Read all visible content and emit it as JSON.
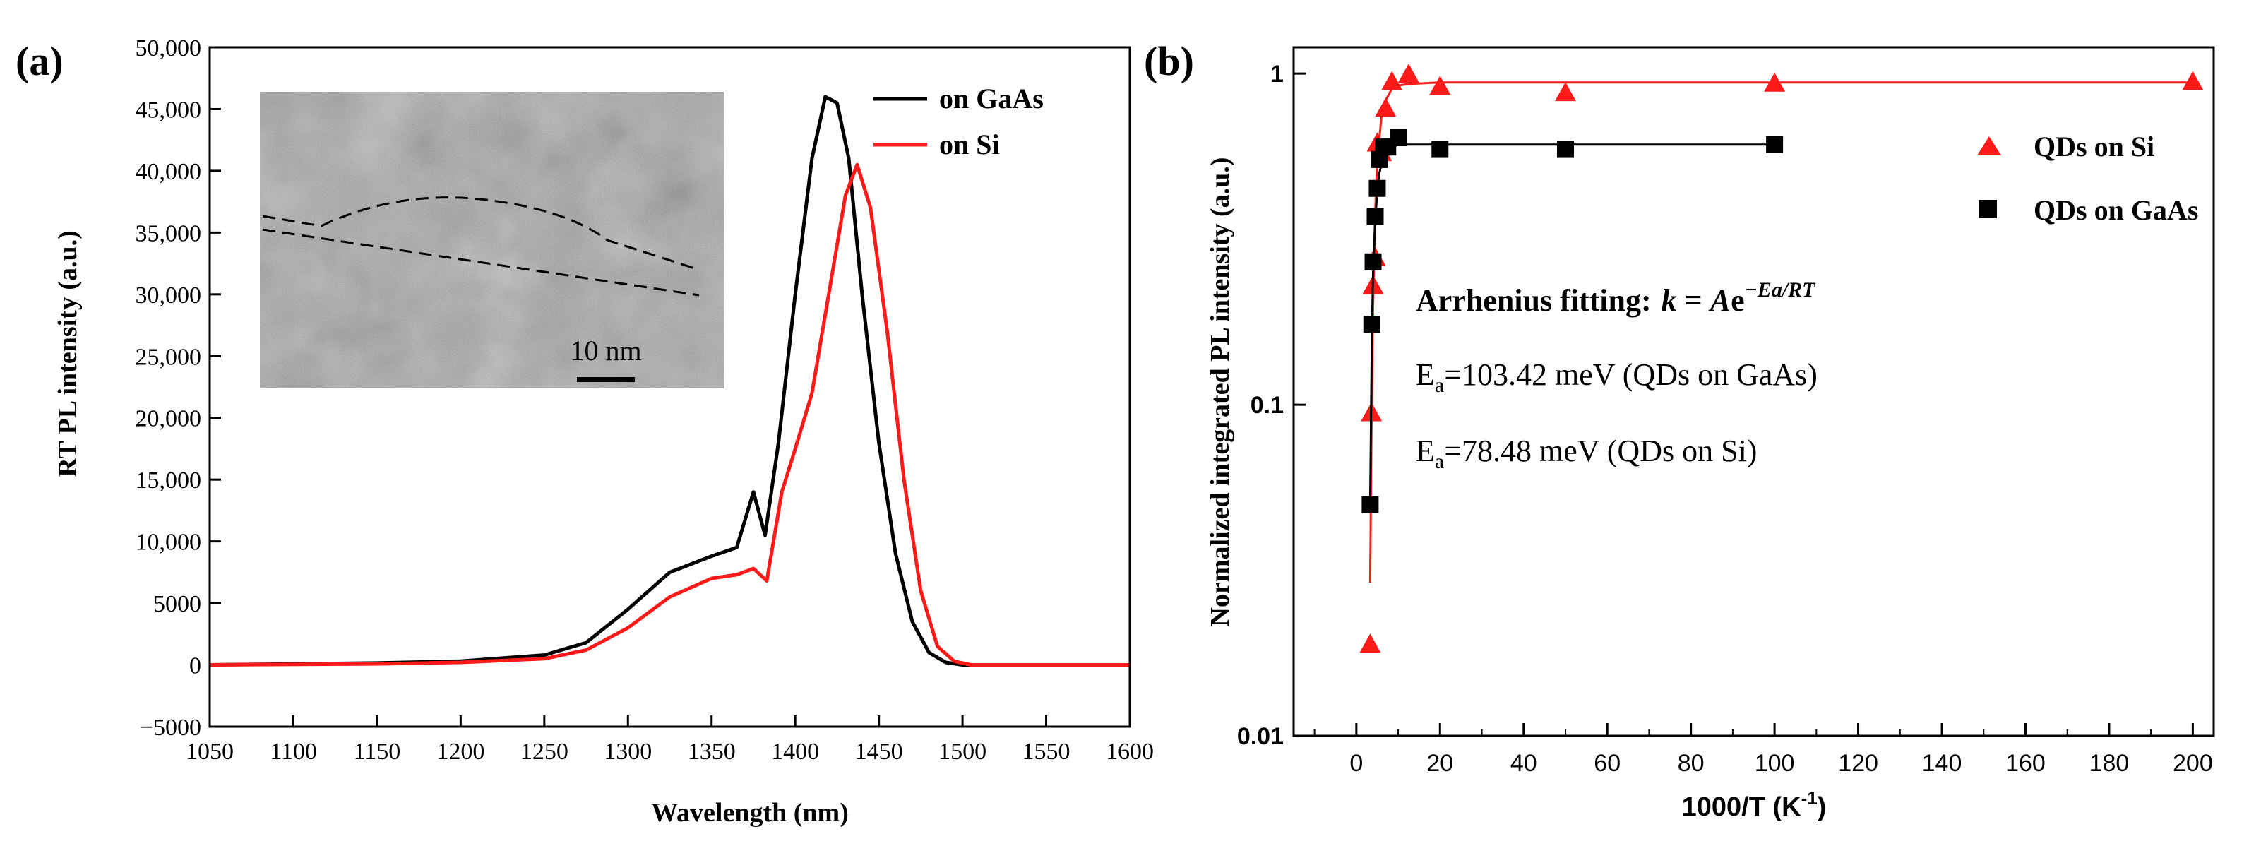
{
  "panels": [
    {
      "label": "(a)",
      "chart_data": {
        "type": "line",
        "title": "",
        "xlabel": "Wavelength (nm)",
        "ylabel": "RT PL intensity (a.u.)",
        "xlim": [
          1050,
          1600
        ],
        "ylim": [
          -5000,
          50000
        ],
        "xticks": [
          1050,
          1100,
          1150,
          1200,
          1250,
          1300,
          1350,
          1400,
          1450,
          1500,
          1550,
          1600
        ],
        "yticks": [
          -5000,
          0,
          5000,
          10000,
          15000,
          20000,
          25000,
          30000,
          35000,
          40000,
          45000,
          50000
        ],
        "ytick_labels": [
          "−5000",
          "0",
          "5000",
          "10,000",
          "15,000",
          "20,000",
          "25,000",
          "30,000",
          "35,000",
          "40,000",
          "45,000",
          "50,000"
        ],
        "legend_position": "top-right",
        "series": [
          {
            "name": "on GaAs",
            "color": "#000000",
            "x": [
              1050,
              1150,
              1200,
              1250,
              1275,
              1300,
              1325,
              1350,
              1365,
              1375,
              1382,
              1390,
              1400,
              1410,
              1418,
              1425,
              1432,
              1440,
              1450,
              1460,
              1470,
              1480,
              1490,
              1500,
              1550,
              1600
            ],
            "y": [
              0,
              150,
              300,
              800,
              1800,
              4500,
              7500,
              8800,
              9500,
              14000,
              10500,
              18000,
              30000,
              41000,
              46000,
              45500,
              41000,
              30000,
              18000,
              9000,
              3500,
              1000,
              200,
              0,
              0,
              0
            ]
          },
          {
            "name": "on Si",
            "color": "#ff1a1a",
            "x": [
              1050,
              1150,
              1200,
              1250,
              1275,
              1300,
              1325,
              1350,
              1365,
              1375,
              1383,
              1392,
              1400,
              1410,
              1420,
              1430,
              1437,
              1445,
              1455,
              1465,
              1475,
              1485,
              1495,
              1505,
              1550,
              1600
            ],
            "y": [
              0,
              80,
              200,
              500,
              1200,
              3000,
              5500,
              7000,
              7300,
              7800,
              6800,
              14000,
              17500,
              22000,
              30000,
              38000,
              40500,
              37000,
              27000,
              15000,
              6000,
              1500,
              300,
              0,
              0,
              0
            ]
          }
        ]
      },
      "inset": {
        "scale_bar_label": "10 nm"
      }
    },
    {
      "label": "(b)",
      "chart_data": {
        "type": "scatter",
        "title": "",
        "xlabel_main": "1000/T (K",
        "xlabel_sup": "-1",
        "xlabel_end": ")",
        "ylabel": "Normalized integrated PL intensity (a.u.)",
        "xlim": [
          -15,
          205
        ],
        "ylim": [
          0.01,
          1.2
        ],
        "yscale": "log",
        "xticks": [
          0,
          20,
          40,
          60,
          80,
          100,
          120,
          140,
          160,
          180,
          200
        ],
        "yticks": [
          0.01,
          0.1,
          1
        ],
        "ytick_labels": [
          "0.01",
          "0.1",
          "1"
        ],
        "legend_position": "top-right",
        "series": [
          {
            "name": "QDs on Si",
            "color": "#ff1a1a",
            "marker": "triangle",
            "x": [
              3.3,
              3.6,
              4.0,
              4.5,
              5.0,
              6.0,
              7.0,
              8.5,
              12.5,
              20,
              50,
              100,
              200
            ],
            "y": [
              0.019,
              0.095,
              0.23,
              0.28,
              0.62,
              0.58,
              0.79,
              0.95,
              1.0,
              0.92,
              0.88,
              0.94,
              0.95
            ],
            "fit_x": [
              3.3,
              3.6,
              4.0,
              4.5,
              5.0,
              6.0,
              7.0,
              8.5,
              10,
              12.5,
              20,
              50,
              100,
              200
            ],
            "fit_y": [
              0.029,
              0.08,
              0.2,
              0.38,
              0.55,
              0.74,
              0.83,
              0.9,
              0.92,
              0.93,
              0.94,
              0.94,
              0.94,
              0.94
            ]
          },
          {
            "name": "QDs on GaAs",
            "color": "#000000",
            "marker": "square",
            "x": [
              3.3,
              3.7,
              4.0,
              4.5,
              5.0,
              5.5,
              6.5,
              7.5,
              10,
              20,
              50,
              100
            ],
            "y": [
              0.05,
              0.175,
              0.27,
              0.37,
              0.45,
              0.55,
              0.6,
              0.6,
              0.64,
              0.59,
              0.59,
              0.61
            ],
            "fit_x": [
              3.3,
              3.7,
              4.0,
              4.5,
              5.0,
              5.5,
              6.5,
              7.5,
              10,
              20,
              50,
              100
            ],
            "fit_y": [
              0.05,
              0.16,
              0.25,
              0.36,
              0.44,
              0.5,
              0.56,
              0.59,
              0.61,
              0.61,
              0.61,
              0.61
            ]
          }
        ],
        "annotation": {
          "heading": "Arrhenius fitting:",
          "formula_k": "k",
          "formula_eq": " = ",
          "formula_A": "A",
          "formula_e": "e",
          "formula_exp": "−Ea/RT",
          "ea_gaas_sym": "E",
          "ea_gaas_sub": "a",
          "ea_gaas_text": "=103.42  meV (QDs on GaAs)",
          "ea_si_sym": "E",
          "ea_si_sub": "a",
          "ea_si_text": "=78.48  meV (QDs on Si)"
        }
      }
    }
  ]
}
